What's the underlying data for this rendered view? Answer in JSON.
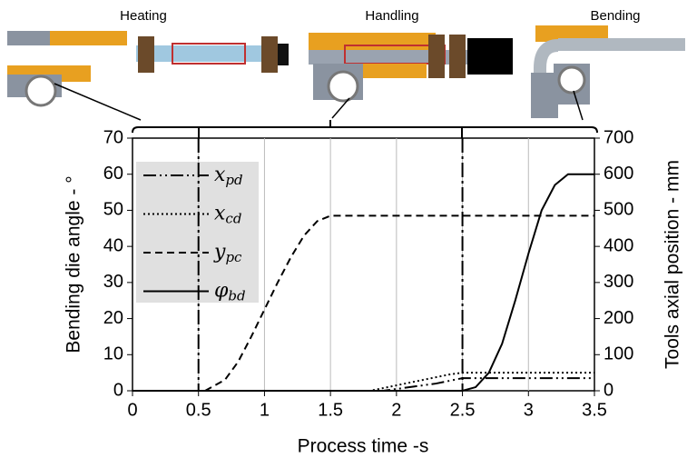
{
  "chart_data": {
    "type": "line",
    "stages": [
      "Heating",
      "Handling",
      "Bending"
    ],
    "xlabel": "Process time -s",
    "ylabel": "Bending die angle - °",
    "y2label": "Tools axial position - mm",
    "xlim": [
      0,
      3.5
    ],
    "xticks": [
      0,
      0.5,
      1,
      1.5,
      2,
      2.5,
      3,
      3.5
    ],
    "ylim": [
      0,
      70
    ],
    "yticks": [
      0,
      10,
      20,
      30,
      40,
      50,
      60,
      70
    ],
    "y2lim": [
      0,
      700
    ],
    "y2ticks": [
      0,
      100,
      200,
      300,
      400,
      500,
      600,
      700
    ],
    "grid": true,
    "vlines": [
      0.5,
      2.5
    ],
    "series": [
      {
        "name": "x",
        "subscript": "pd",
        "color": "#000000",
        "dash": "14 4 2 4 2 4",
        "axis": "y2",
        "x": [
          0,
          1.9,
          2.1,
          2.3,
          2.5,
          3.5
        ],
        "values": [
          0,
          0,
          10,
          20,
          35,
          35
        ]
      },
      {
        "name": "x",
        "subscript": "cd",
        "color": "#000000",
        "dash": "2 3",
        "axis": "y2",
        "x": [
          0,
          1.8,
          2.0,
          2.2,
          2.4,
          2.5,
          3.5
        ],
        "values": [
          0,
          0,
          15,
          30,
          45,
          50,
          50
        ]
      },
      {
        "name": "y",
        "subscript": "pc",
        "color": "#000000",
        "dash": "8 5",
        "axis": "y2",
        "x": [
          0.55,
          0.7,
          0.8,
          0.9,
          1.0,
          1.1,
          1.2,
          1.3,
          1.4,
          1.5,
          3.5
        ],
        "values": [
          0,
          30,
          80,
          150,
          225,
          300,
          370,
          430,
          470,
          485,
          485
        ]
      },
      {
        "name": "φ",
        "subscript": "bd",
        "color": "#000000",
        "dash": "none",
        "axis": "y",
        "x": [
          0,
          2.5,
          2.6,
          2.7,
          2.8,
          2.9,
          3.0,
          3.1,
          3.2,
          3.3,
          3.4,
          3.5
        ],
        "values": [
          0,
          0,
          1,
          5,
          13,
          25,
          38,
          50,
          57,
          60,
          60,
          60
        ]
      }
    ]
  }
}
